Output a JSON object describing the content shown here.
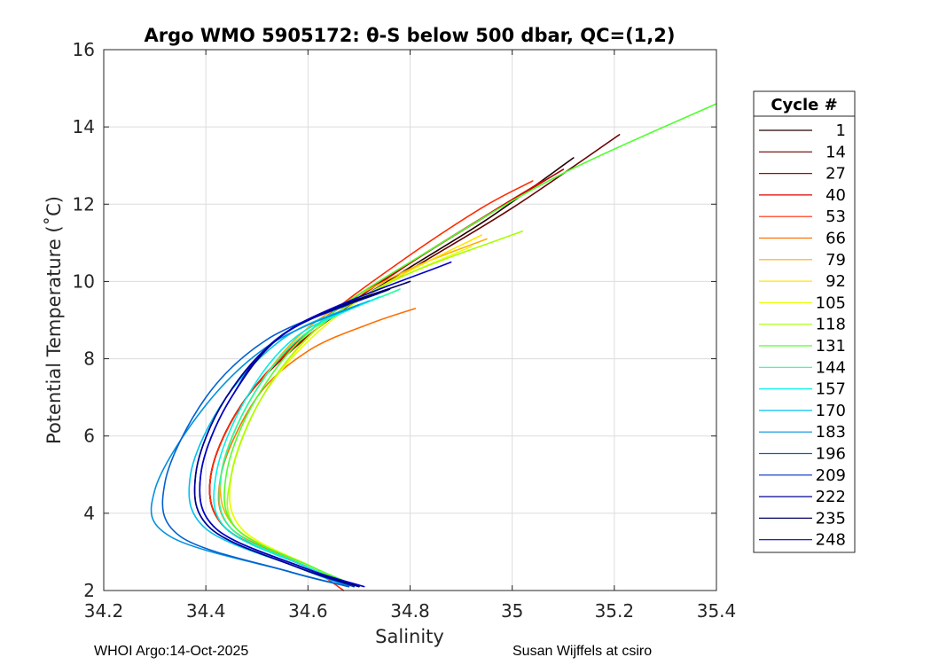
{
  "chart_data": {
    "type": "line",
    "title": "Argo WMO 5905172: θ-S below 500 dbar,  QC=(1,2)",
    "xlabel": "Salinity",
    "ylabel": "Potential Temperature (˚C)",
    "xlim": [
      34.2,
      35.4
    ],
    "ylim": [
      2,
      16
    ],
    "xticks": [
      34.2,
      34.4,
      34.6,
      34.8,
      35,
      35.2,
      35.4
    ],
    "xtick_labels": [
      "34.2",
      "34.4",
      "34.6",
      "34.8",
      "35",
      "35.2",
      "35.4"
    ],
    "yticks": [
      2,
      4,
      6,
      8,
      10,
      12,
      14,
      16
    ],
    "ytick_labels": [
      "2",
      "4",
      "6",
      "8",
      "10",
      "12",
      "14",
      "16"
    ],
    "grid": true,
    "legend_title": "Cycle #",
    "legend_position": "right",
    "series": [
      {
        "name": "1",
        "color": "#200000",
        "salinity": [
          34.68,
          34.6,
          34.44,
          34.41,
          34.48,
          34.62,
          34.78,
          34.95,
          35.12
        ],
        "theta": [
          2.1,
          2.6,
          3.6,
          5.0,
          7.0,
          8.8,
          10.2,
          11.6,
          13.2
        ]
      },
      {
        "name": "14",
        "color": "#6a0000",
        "salinity": [
          34.69,
          34.6,
          34.44,
          34.41,
          34.48,
          34.62,
          34.8,
          35.0,
          35.21
        ],
        "theta": [
          2.1,
          2.6,
          3.6,
          5.0,
          7.0,
          8.8,
          10.3,
          11.9,
          13.8
        ]
      },
      {
        "name": "27",
        "color": "#b00000",
        "salinity": [
          34.68,
          34.6,
          34.44,
          34.41,
          34.48,
          34.62,
          34.78,
          34.95,
          35.1
        ],
        "theta": [
          2.1,
          2.6,
          3.6,
          5.0,
          7.0,
          8.8,
          10.3,
          11.7,
          12.9
        ]
      },
      {
        "name": "40",
        "color": "#e00000",
        "salinity": [
          34.68,
          34.6,
          34.44,
          34.41,
          34.48,
          34.62,
          34.79,
          34.96,
          35.06
        ],
        "theta": [
          2.1,
          2.6,
          3.6,
          5.0,
          7.0,
          8.9,
          10.4,
          11.8,
          12.6
        ]
      },
      {
        "name": "53",
        "color": "#ff2a00",
        "salinity": [
          34.67,
          34.6,
          34.44,
          34.41,
          34.48,
          34.62,
          34.78,
          34.94,
          35.04
        ],
        "theta": [
          2.0,
          2.6,
          3.6,
          5.0,
          7.0,
          8.9,
          10.5,
          11.9,
          12.6
        ]
      },
      {
        "name": "66",
        "color": "#ff7000",
        "salinity": [
          34.68,
          34.61,
          34.45,
          34.43,
          34.5,
          34.6,
          34.72,
          34.81
        ],
        "theta": [
          2.1,
          2.6,
          3.6,
          5.0,
          7.0,
          8.2,
          8.9,
          9.3
        ]
      },
      {
        "name": "79",
        "color": "#ffae00",
        "salinity": [
          34.68,
          34.61,
          34.46,
          34.43,
          34.49,
          34.6,
          34.78,
          34.95
        ],
        "theta": [
          2.1,
          2.6,
          3.6,
          5.0,
          7.0,
          8.8,
          10.2,
          11.1
        ]
      },
      {
        "name": "92",
        "color": "#ffe600",
        "salinity": [
          34.69,
          34.61,
          34.47,
          34.45,
          34.51,
          34.62,
          34.76,
          34.94
        ],
        "theta": [
          2.1,
          2.6,
          3.6,
          5.0,
          7.0,
          8.8,
          10.0,
          11.2
        ]
      },
      {
        "name": "105",
        "color": "#e6ff00",
        "salinity": [
          34.69,
          34.61,
          34.47,
          34.45,
          34.51,
          34.62,
          34.75,
          34.92
        ],
        "theta": [
          2.1,
          2.6,
          3.6,
          5.0,
          7.0,
          8.7,
          9.9,
          10.9
        ]
      },
      {
        "name": "118",
        "color": "#a8ff00",
        "salinity": [
          34.69,
          34.61,
          34.46,
          34.45,
          34.51,
          34.62,
          34.78,
          35.02
        ],
        "theta": [
          2.1,
          2.6,
          3.6,
          5.0,
          7.0,
          8.8,
          10.1,
          11.3
        ]
      },
      {
        "name": "131",
        "color": "#50ff30",
        "salinity": [
          34.7,
          34.61,
          34.46,
          34.44,
          34.5,
          34.62,
          34.85,
          35.1,
          35.4
        ],
        "theta": [
          2.1,
          2.6,
          3.6,
          5.0,
          7.0,
          8.9,
          10.9,
          12.8,
          14.6
        ]
      },
      {
        "name": "144",
        "color": "#20ffa0",
        "salinity": [
          34.69,
          34.6,
          34.45,
          34.43,
          34.49,
          34.6,
          34.78
        ],
        "theta": [
          2.1,
          2.6,
          3.6,
          5.0,
          7.0,
          8.7,
          9.8
        ]
      },
      {
        "name": "157",
        "color": "#00f0e8",
        "salinity": [
          34.69,
          34.6,
          34.44,
          34.42,
          34.48,
          34.58,
          34.74
        ],
        "theta": [
          2.1,
          2.6,
          3.6,
          5.0,
          7.0,
          8.6,
          9.6
        ]
      },
      {
        "name": "170",
        "color": "#00c0f0",
        "salinity": [
          34.68,
          34.58,
          34.4,
          34.37,
          34.44,
          34.56,
          34.72
        ],
        "theta": [
          2.1,
          2.6,
          3.6,
          5.0,
          7.0,
          8.6,
          9.5
        ]
      },
      {
        "name": "183",
        "color": "#0090e0",
        "salinity": [
          34.68,
          34.56,
          34.33,
          34.3,
          34.4,
          34.53,
          34.7
        ],
        "theta": [
          2.1,
          2.5,
          3.4,
          4.6,
          6.8,
          8.4,
          9.4
        ]
      },
      {
        "name": "196",
        "color": "#0060d0",
        "salinity": [
          34.68,
          34.56,
          34.35,
          34.32,
          34.4,
          34.52,
          34.68
        ],
        "theta": [
          2.1,
          2.5,
          3.4,
          4.8,
          7.0,
          8.5,
          9.4
        ]
      },
      {
        "name": "209",
        "color": "#0030c0",
        "salinity": [
          34.69,
          34.58,
          34.41,
          34.38,
          34.44,
          34.56,
          34.74
        ],
        "theta": [
          2.1,
          2.6,
          3.6,
          5.0,
          7.0,
          8.7,
          9.7
        ]
      },
      {
        "name": "222",
        "color": "#000090",
        "salinity": [
          34.7,
          34.58,
          34.41,
          34.38,
          34.44,
          34.56,
          34.76
        ],
        "theta": [
          2.1,
          2.6,
          3.6,
          5.0,
          7.0,
          8.7,
          9.8
        ]
      },
      {
        "name": "235",
        "color": "#000060",
        "salinity": [
          34.7,
          34.59,
          34.42,
          34.39,
          34.45,
          34.57,
          34.8
        ],
        "theta": [
          2.1,
          2.6,
          3.6,
          5.0,
          7.0,
          8.8,
          10.0
        ]
      },
      {
        "name": "248",
        "color": "#0000cc",
        "salinity": [
          34.71,
          34.59,
          34.42,
          34.39,
          34.45,
          34.57,
          34.88
        ],
        "theta": [
          2.1,
          2.6,
          3.6,
          5.0,
          7.0,
          8.8,
          10.5
        ]
      }
    ]
  },
  "footer": {
    "left": "WHOI Argo:14-Oct-2025",
    "right": "Susan Wijffels at csiro"
  }
}
